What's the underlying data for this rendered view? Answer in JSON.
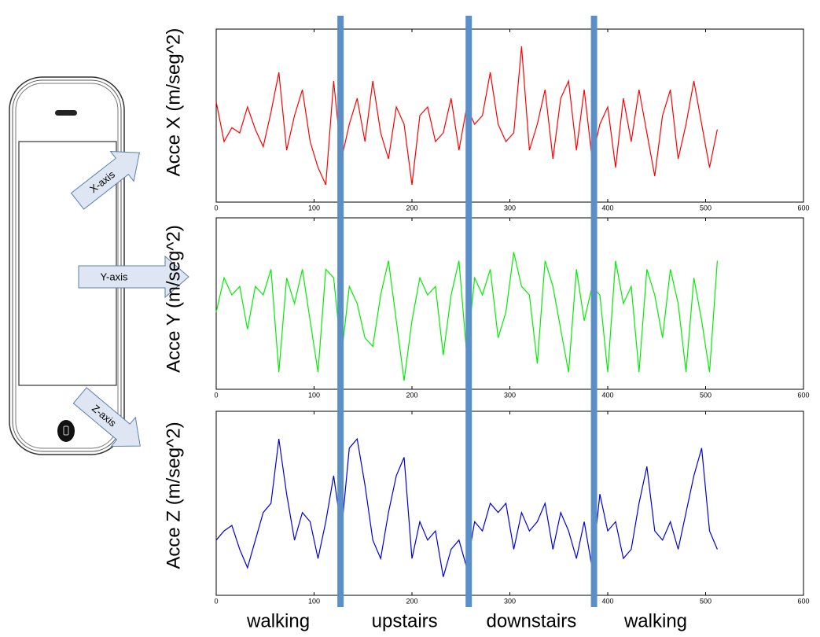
{
  "phone": {
    "axes": [
      "X-axis",
      "Y-axis",
      "Z-axis"
    ]
  },
  "activities": {
    "labels": [
      "walking",
      "upstairs",
      "downstairs",
      "walking"
    ],
    "boundaries": [
      127,
      258,
      386
    ]
  },
  "chart_data": [
    {
      "type": "line",
      "ylabel": "Acce X (m/seg^2)",
      "color": "#ff0000",
      "x": [
        0,
        8,
        16,
        24,
        32,
        40,
        48,
        56,
        64,
        72,
        80,
        88,
        96,
        104,
        112,
        120,
        128,
        136,
        144,
        152,
        160,
        168,
        176,
        184,
        192,
        200,
        208,
        216,
        224,
        232,
        240,
        248,
        256,
        264,
        272,
        280,
        288,
        296,
        304,
        312,
        320,
        328,
        336,
        344,
        352,
        360,
        368,
        376,
        384,
        392,
        400,
        408,
        416,
        424,
        432,
        440,
        448,
        456,
        464,
        472,
        480,
        488,
        496,
        504,
        512
      ],
      "values": [
        5.8,
        3.5,
        4.3,
        4.0,
        5.5,
        4.2,
        3.2,
        5.2,
        7.5,
        3.0,
        5.0,
        6.5,
        3.5,
        2.0,
        1.0,
        7.0,
        2.5,
        4.5,
        6.0,
        3.5,
        7.0,
        4.0,
        2.5,
        5.5,
        4.5,
        1.0,
        5.0,
        5.5,
        3.5,
        4.0,
        6.0,
        3.0,
        5.5,
        4.5,
        5.0,
        7.5,
        4.5,
        3.5,
        4.0,
        9.0,
        3.0,
        4.5,
        6.5,
        2.5,
        6.0,
        7.0,
        3.0,
        6.5,
        2.5,
        4.5,
        5.5,
        2.0,
        6.0,
        3.5,
        6.5,
        4.0,
        1.5,
        5.0,
        6.5,
        2.5,
        4.5,
        7.0,
        4.5,
        2.0,
        4.2
      ],
      "xlim": [
        0,
        600
      ],
      "ylim": [
        0,
        10
      ],
      "xticks": [
        0,
        100,
        200,
        300,
        400,
        500,
        600
      ]
    },
    {
      "type": "line",
      "ylabel": "Acce Y (m/seg^2)",
      "color": "#00ee00",
      "x": [
        0,
        8,
        16,
        24,
        32,
        40,
        48,
        56,
        64,
        72,
        80,
        88,
        96,
        104,
        112,
        120,
        128,
        136,
        144,
        152,
        160,
        168,
        176,
        184,
        192,
        200,
        208,
        216,
        224,
        232,
        240,
        248,
        256,
        264,
        272,
        280,
        288,
        296,
        304,
        312,
        320,
        328,
        336,
        344,
        352,
        360,
        368,
        376,
        384,
        392,
        400,
        408,
        416,
        424,
        432,
        440,
        448,
        456,
        464,
        472,
        480,
        488,
        496,
        504,
        512
      ],
      "values": [
        4.5,
        6.5,
        5.5,
        6.0,
        3.5,
        6.0,
        5.5,
        7.0,
        1.0,
        6.5,
        5.0,
        7.0,
        4.0,
        1.0,
        7.0,
        6.5,
        2.0,
        6.0,
        5.0,
        3.0,
        2.5,
        5.5,
        7.5,
        4.0,
        0.5,
        4.0,
        6.5,
        5.5,
        6.0,
        2.0,
        5.5,
        7.5,
        2.0,
        6.5,
        5.5,
        7.0,
        3.0,
        4.5,
        8.0,
        6.0,
        5.5,
        1.5,
        7.5,
        6.0,
        3.5,
        1.0,
        7.0,
        4.0,
        6.0,
        5.5,
        1.0,
        7.5,
        5.0,
        6.0,
        1.0,
        7.0,
        5.5,
        3.0,
        7.0,
        5.0,
        1.0,
        6.5,
        4.0,
        1.0,
        7.5
      ],
      "xlim": [
        0,
        600
      ],
      "ylim": [
        0,
        10
      ],
      "xticks": [
        0,
        100,
        200,
        300,
        400,
        500,
        600
      ]
    },
    {
      "type": "line",
      "ylabel": "Acce Z (m/seg^2)",
      "color": "#0000dd",
      "x": [
        0,
        8,
        16,
        24,
        32,
        40,
        48,
        56,
        64,
        72,
        80,
        88,
        96,
        104,
        112,
        120,
        128,
        136,
        144,
        152,
        160,
        168,
        176,
        184,
        192,
        200,
        208,
        216,
        224,
        232,
        240,
        248,
        256,
        264,
        272,
        280,
        288,
        296,
        304,
        312,
        320,
        328,
        336,
        344,
        352,
        360,
        368,
        376,
        384,
        392,
        400,
        408,
        416,
        424,
        432,
        440,
        448,
        456,
        464,
        472,
        480,
        488,
        496,
        504,
        512
      ],
      "values": [
        3.0,
        3.5,
        3.8,
        2.5,
        1.5,
        3.0,
        4.5,
        5.0,
        8.5,
        5.5,
        3.0,
        4.5,
        4.0,
        2.0,
        4.0,
        6.5,
        3.5,
        8.0,
        8.5,
        6.0,
        3.0,
        2.0,
        4.5,
        6.5,
        7.5,
        2.0,
        4.0,
        3.0,
        3.5,
        1.0,
        2.5,
        3.0,
        1.5,
        4.0,
        3.5,
        5.0,
        4.5,
        5.0,
        2.5,
        4.5,
        3.5,
        4.0,
        5.0,
        2.5,
        4.5,
        3.5,
        2.0,
        4.0,
        1.5,
        5.5,
        3.5,
        4.0,
        2.0,
        2.5,
        5.0,
        7.0,
        3.5,
        3.0,
        4.0,
        2.5,
        4.5,
        6.5,
        8.0,
        3.5,
        2.5
      ],
      "xlim": [
        0,
        600
      ],
      "ylim": [
        0,
        10
      ],
      "xticks": [
        0,
        100,
        200,
        300,
        400,
        500,
        600
      ]
    }
  ]
}
